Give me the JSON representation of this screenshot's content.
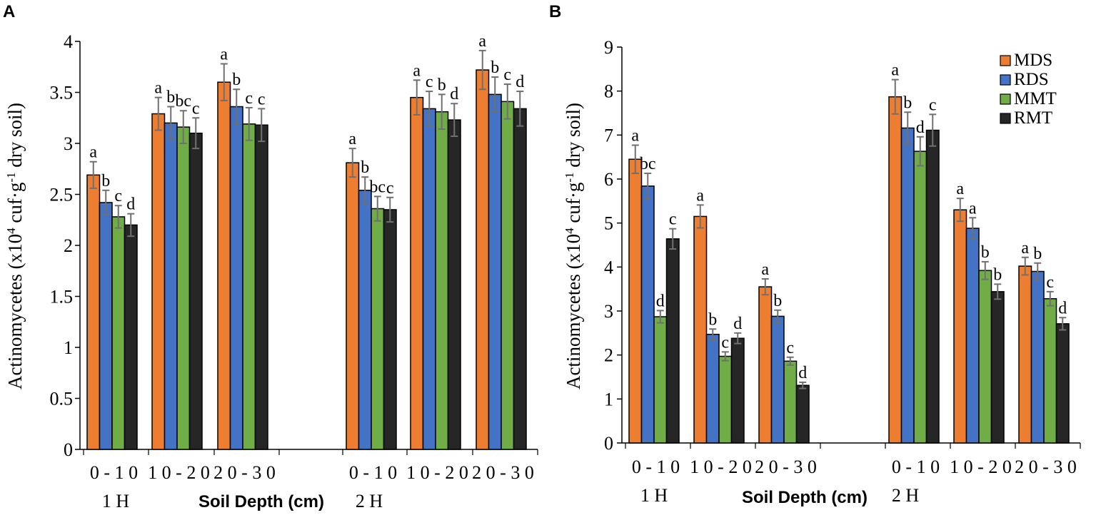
{
  "colors": {
    "MDS": "#ED7D31",
    "RDS": "#4472C4",
    "MMT": "#70AD47",
    "RMT": "#262626",
    "error": "#707070"
  },
  "chart_data": [
    {
      "panel": "A",
      "type": "bar",
      "ylabel_main": "Actinomycetes (x10",
      "ylabel_sup1": "4",
      "ylabel_mid": " cuf·g",
      "ylabel_sup2": "-1",
      "ylabel_end": " dry soil)",
      "xlabel": "Soil Depth (cm)",
      "ylim": [
        0,
        4
      ],
      "yticks": [
        0,
        0.5,
        1,
        1.5,
        2,
        2.5,
        3,
        3.5,
        4
      ],
      "ytick_labels": [
        "0",
        "0.5",
        "1",
        "1.5",
        "2",
        "2.5",
        "3",
        "3.5",
        "4"
      ],
      "legend": null,
      "groups": [
        {
          "label": "1 H",
          "categories": [
            "0-10",
            "10-20",
            "20-30"
          ]
        },
        {
          "label": "2 H",
          "categories": [
            "0-10",
            "10-20",
            "20-30"
          ]
        }
      ],
      "category_labels": [
        "0 - 1 0",
        "1 0 - 2 0",
        "2 0 - 3 0",
        "0 - 1 0",
        "1 0 - 2 0",
        "2 0 - 3 0"
      ],
      "group_labels": [
        "1 H",
        "2 H"
      ],
      "series": [
        {
          "name": "MDS",
          "values": [
            2.69,
            3.29,
            3.6,
            2.81,
            3.45,
            3.72
          ],
          "errors": [
            0.13,
            0.16,
            0.18,
            0.14,
            0.17,
            0.19
          ],
          "letters": [
            "a",
            "a",
            "a",
            "a",
            "a",
            "a"
          ]
        },
        {
          "name": "RDS",
          "values": [
            2.42,
            3.2,
            3.36,
            2.54,
            3.34,
            3.48
          ],
          "errors": [
            0.12,
            0.16,
            0.17,
            0.13,
            0.17,
            0.17
          ],
          "letters": [
            "b",
            "b",
            "b",
            "b",
            "c",
            "b"
          ]
        },
        {
          "name": "MMT",
          "values": [
            2.28,
            3.16,
            3.19,
            2.36,
            3.31,
            3.41
          ],
          "errors": [
            0.11,
            0.16,
            0.16,
            0.12,
            0.17,
            0.17
          ],
          "letters": [
            "c",
            "bc",
            "c",
            "bc",
            "b",
            "c"
          ]
        },
        {
          "name": "RMT",
          "values": [
            2.2,
            3.1,
            3.18,
            2.35,
            3.23,
            3.34
          ],
          "errors": [
            0.11,
            0.15,
            0.16,
            0.12,
            0.16,
            0.17
          ],
          "letters": [
            "d",
            "c",
            "c",
            "c",
            "d",
            "d"
          ]
        }
      ]
    },
    {
      "panel": "B",
      "type": "bar",
      "ylabel_main": "Actinomycetes (x10",
      "ylabel_sup1": "4",
      "ylabel_mid": " cuf·g",
      "ylabel_sup2": "-1",
      "ylabel_end": " dry soil)",
      "xlabel": "Soil Depth (cm)",
      "ylim": [
        0,
        9
      ],
      "yticks": [
        0,
        1,
        2,
        3,
        4,
        5,
        6,
        7,
        8,
        9
      ],
      "ytick_labels": [
        "0",
        "1",
        "2",
        "3",
        "4",
        "5",
        "6",
        "7",
        "8",
        "9"
      ],
      "legend": [
        "MDS",
        "RDS",
        "MMT",
        "RMT"
      ],
      "groups": [
        {
          "label": "1 H",
          "categories": [
            "0-10",
            "10-20",
            "20-30"
          ]
        },
        {
          "label": "2 H",
          "categories": [
            "0-10",
            "10-20",
            "20-30"
          ]
        }
      ],
      "category_labels": [
        "0 - 1 0",
        "1 0 - 2 0",
        "2 0 - 3 0",
        "0 - 1 0",
        "1 0 - 2 0",
        "2 0 - 3 0"
      ],
      "group_labels": [
        "1 H",
        "2 H"
      ],
      "series": [
        {
          "name": "MDS",
          "values": [
            6.45,
            5.15,
            3.55,
            7.87,
            5.3,
            4.02
          ],
          "errors": [
            0.32,
            0.26,
            0.18,
            0.39,
            0.26,
            0.2
          ],
          "letters": [
            "a",
            "a",
            "a",
            "a",
            "a",
            "a"
          ]
        },
        {
          "name": "RDS",
          "values": [
            5.84,
            2.47,
            2.88,
            7.16,
            4.88,
            3.9
          ],
          "errors": [
            0.29,
            0.12,
            0.14,
            0.36,
            0.24,
            0.19
          ],
          "letters": [
            "bc",
            "b",
            "b",
            "b",
            "a",
            "b"
          ]
        },
        {
          "name": "MMT",
          "values": [
            2.87,
            1.97,
            1.86,
            6.63,
            3.92,
            3.28
          ],
          "errors": [
            0.14,
            0.1,
            0.09,
            0.33,
            0.2,
            0.16
          ],
          "letters": [
            "d",
            "c",
            "c",
            "d",
            "b",
            "c"
          ]
        },
        {
          "name": "RMT",
          "values": [
            4.64,
            2.38,
            1.31,
            7.11,
            3.44,
            2.71
          ],
          "errors": [
            0.23,
            0.12,
            0.07,
            0.36,
            0.17,
            0.14
          ],
          "letters": [
            "c",
            "d",
            "d",
            "c",
            "b",
            "d"
          ]
        }
      ]
    }
  ]
}
